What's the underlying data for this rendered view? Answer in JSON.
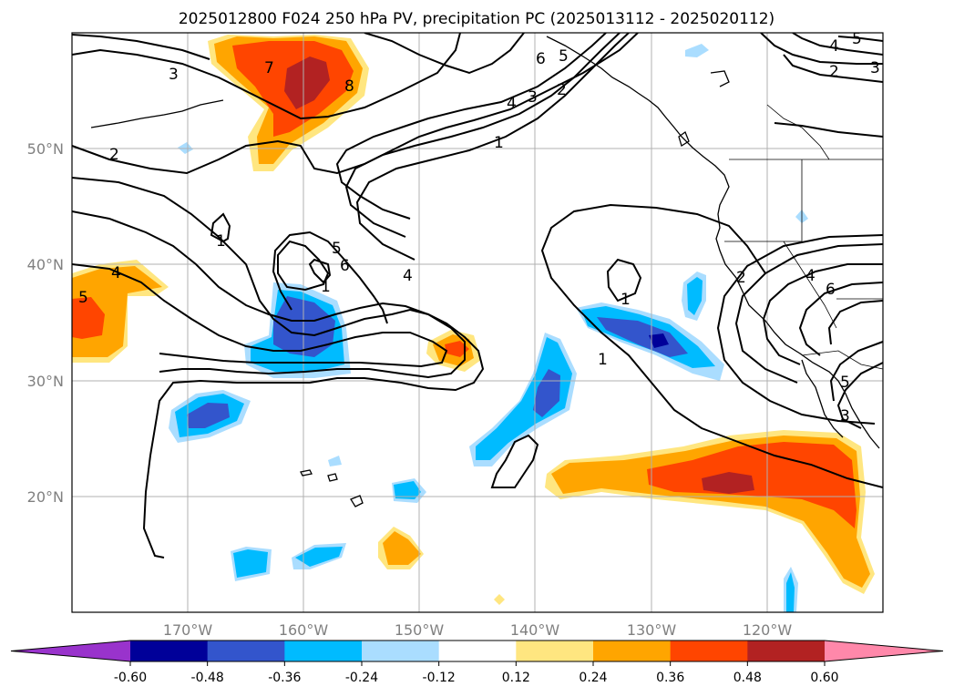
{
  "title": "2025012800 F024 250 hPa PV, precipitation PC (2025013112 - 2025020112)",
  "lon_labels": [
    "170°W",
    "160°W",
    "150°W",
    "140°W",
    "130°W",
    "120°W"
  ],
  "lat_labels": [
    "50°N",
    "40°N",
    "30°N",
    "20°N"
  ],
  "extent": {
    "lon_min": -180,
    "lon_max": -110,
    "lat_min": 10,
    "lat_max": 60
  },
  "colorbar": {
    "ticks": [
      "-0.60",
      "-0.48",
      "-0.36",
      "-0.24",
      "-0.12",
      "0.12",
      "0.24",
      "0.36",
      "0.48",
      "0.60"
    ],
    "colors": [
      "#9933cc",
      "#000099",
      "#3355cc",
      "#00bbff",
      "#aaddff",
      "#ffffff",
      "#ffe680",
      "#ffa500",
      "#ff4500",
      "#b22222",
      "#ff88aa"
    ]
  },
  "contour_labels": [
    "1",
    "2",
    "3",
    "4",
    "5",
    "6",
    "7",
    "8"
  ],
  "colors": {
    "contour": "#000000",
    "grid": "#b0b0b0",
    "coast": "#000000"
  }
}
